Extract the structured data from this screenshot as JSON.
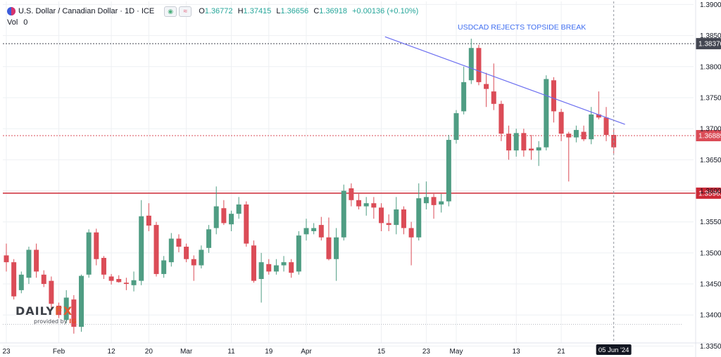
{
  "header": {
    "symbol": "U.S. Dollar / Canadian Dollar · 1D · ICE",
    "eye_icon": "eye-icon",
    "wave_icon": "approx-icon",
    "open_label": "O",
    "open": "1.36772",
    "high_label": "H",
    "high": "1.37415",
    "low_label": "L",
    "low": "1.36656",
    "close_label": "C",
    "close": "1.36918",
    "change": "+0.00136 (+0.10%)",
    "vol_label": "Vol",
    "vol_value": "0"
  },
  "logo": {
    "daily": "DAILY",
    "fx": "FX",
    "provided_by": "provided by",
    "ig": "IG"
  },
  "colors": {
    "up": "#4f9d83",
    "down": "#db4c57",
    "trend": "#6a6df0",
    "support": "#cc2936",
    "annotation": "#3e6df0",
    "last_price": "#db4c57"
  },
  "chart_data": {
    "type": "candlestick",
    "title": "USDCAD REJECTS TOPSIDE BREAK",
    "ylim": [
      1.3355,
      1.3905
    ],
    "y_ticks": [
      "1.39000",
      "1.38500",
      "1.38000",
      "1.37500",
      "1.37000",
      "1.36500",
      "1.36000",
      "1.35500",
      "1.35000",
      "1.34500",
      "1.34000",
      "1.33500"
    ],
    "x_ticks": [
      {
        "label": "23",
        "i": 0
      },
      {
        "label": "Feb",
        "i": 7
      },
      {
        "label": "12",
        "i": 14
      },
      {
        "label": "20",
        "i": 19
      },
      {
        "label": "Mar",
        "i": 24
      },
      {
        "label": "11",
        "i": 30
      },
      {
        "label": "19",
        "i": 35
      },
      {
        "label": "Apr",
        "i": 40
      },
      {
        "label": "15",
        "i": 50
      },
      {
        "label": "23",
        "i": 56
      },
      {
        "label": "May",
        "i": 60
      },
      {
        "label": "13",
        "i": 68
      },
      {
        "label": "21",
        "i": 74
      }
    ],
    "crosshair_date": "05 Jun '24",
    "levels": [
      {
        "label": "1.38370",
        "value": 1.3837,
        "style": "dotted",
        "color": "#434651"
      },
      {
        "label": "1.36889",
        "value": 1.36889,
        "style": "dotted",
        "color": "#db4c57"
      },
      {
        "label": "1.35962",
        "value": 1.35962,
        "style": "solid",
        "color": "#cc2936"
      }
    ],
    "trendline": {
      "from": {
        "i": 50.5,
        "value": 1.3848
      },
      "to": {
        "i": 82.5,
        "value": 1.3707
      }
    },
    "candles": [
      [
        1.3496,
        1.3485,
        1.3515,
        1.347
      ],
      [
        1.3485,
        1.343,
        1.349,
        1.3425
      ],
      [
        1.344,
        1.3465,
        1.347,
        1.3435
      ],
      [
        1.346,
        1.3505,
        1.351,
        1.345
      ],
      [
        1.3505,
        1.347,
        1.3515,
        1.346
      ],
      [
        1.3465,
        1.345,
        1.3472,
        1.3445
      ],
      [
        1.3455,
        1.3418,
        1.3462,
        1.3408
      ],
      [
        1.3415,
        1.34,
        1.342,
        1.3395
      ],
      [
        1.3392,
        1.3428,
        1.344,
        1.3387
      ],
      [
        1.3425,
        1.3381,
        1.3432,
        1.337
      ],
      [
        1.3381,
        1.3463,
        1.3465,
        1.3373
      ],
      [
        1.3465,
        1.3533,
        1.3538,
        1.346
      ],
      [
        1.3533,
        1.349,
        1.3539,
        1.348
      ],
      [
        1.3492,
        1.3465,
        1.3495,
        1.3458
      ],
      [
        1.3462,
        1.3455,
        1.3466,
        1.3449
      ],
      [
        1.3458,
        1.3453,
        1.3464,
        1.3452
      ],
      [
        1.3452,
        1.345,
        1.346,
        1.344
      ],
      [
        1.3448,
        1.3456,
        1.347,
        1.3438
      ],
      [
        1.3455,
        1.3559,
        1.3585,
        1.3448
      ],
      [
        1.356,
        1.3544,
        1.358,
        1.3535
      ],
      [
        1.3545,
        1.3466,
        1.355,
        1.3462
      ],
      [
        1.3466,
        1.3488,
        1.3495,
        1.346
      ],
      [
        1.3485,
        1.3523,
        1.3532,
        1.3478
      ],
      [
        1.3523,
        1.351,
        1.353,
        1.3501
      ],
      [
        1.351,
        1.349,
        1.3515,
        1.3485
      ],
      [
        1.349,
        1.348,
        1.3496,
        1.3455
      ],
      [
        1.348,
        1.3505,
        1.3512,
        1.3475
      ],
      [
        1.3508,
        1.3538,
        1.3545,
        1.35
      ],
      [
        1.354,
        1.3575,
        1.3607,
        1.353
      ],
      [
        1.3572,
        1.3548,
        1.3585,
        1.3545
      ],
      [
        1.3546,
        1.3563,
        1.3568,
        1.3535
      ],
      [
        1.3563,
        1.3578,
        1.359,
        1.3555
      ],
      [
        1.3578,
        1.3515,
        1.3583,
        1.351
      ],
      [
        1.3512,
        1.3455,
        1.352,
        1.3452
      ],
      [
        1.3458,
        1.3485,
        1.35,
        1.342
      ],
      [
        1.3482,
        1.347,
        1.349,
        1.3465
      ],
      [
        1.347,
        1.348,
        1.349,
        1.3465
      ],
      [
        1.348,
        1.3485,
        1.3495,
        1.347
      ],
      [
        1.3485,
        1.3468,
        1.349,
        1.346
      ],
      [
        1.347,
        1.3528,
        1.3535,
        1.3465
      ],
      [
        1.353,
        1.354,
        1.3555,
        1.352
      ],
      [
        1.3535,
        1.354,
        1.3548,
        1.353
      ],
      [
        1.3545,
        1.3525,
        1.3558,
        1.352
      ],
      [
        1.3525,
        1.349,
        1.3557,
        1.3488
      ],
      [
        1.349,
        1.3525,
        1.354,
        1.3455
      ],
      [
        1.3525,
        1.36,
        1.361,
        1.352
      ],
      [
        1.3604,
        1.3585,
        1.3612,
        1.3575
      ],
      [
        1.3585,
        1.3575,
        1.3595,
        1.357
      ],
      [
        1.3575,
        1.358,
        1.359,
        1.356
      ],
      [
        1.358,
        1.3573,
        1.359,
        1.3555
      ],
      [
        1.3573,
        1.3548,
        1.358,
        1.3535
      ],
      [
        1.3548,
        1.3545,
        1.3562,
        1.3535
      ],
      [
        1.3545,
        1.357,
        1.359,
        1.353
      ],
      [
        1.357,
        1.354,
        1.3575,
        1.353
      ],
      [
        1.354,
        1.3525,
        1.355,
        1.348
      ],
      [
        1.3525,
        1.3588,
        1.3612,
        1.352
      ],
      [
        1.358,
        1.359,
        1.3615,
        1.357
      ],
      [
        1.359,
        1.3577,
        1.3595,
        1.3555
      ],
      [
        1.3578,
        1.3583,
        1.3595,
        1.3565
      ],
      [
        1.3583,
        1.3682,
        1.369,
        1.3575
      ],
      [
        1.3682,
        1.3725,
        1.373,
        1.3676
      ],
      [
        1.3728,
        1.3775,
        1.38,
        1.3723
      ],
      [
        1.3778,
        1.383,
        1.3845,
        1.3772
      ],
      [
        1.383,
        1.3775,
        1.3835,
        1.377
      ],
      [
        1.3772,
        1.3764,
        1.379,
        1.3735
      ],
      [
        1.376,
        1.374,
        1.3805,
        1.373
      ],
      [
        1.374,
        1.3692,
        1.3745,
        1.368
      ],
      [
        1.3692,
        1.3665,
        1.3705,
        1.365
      ],
      [
        1.3665,
        1.3693,
        1.37,
        1.3655
      ],
      [
        1.3693,
        1.3665,
        1.37,
        1.3655
      ],
      [
        1.3668,
        1.3665,
        1.369,
        1.365
      ],
      [
        1.3665,
        1.367,
        1.368,
        1.364
      ],
      [
        1.367,
        1.378,
        1.3786,
        1.3665
      ],
      [
        1.3778,
        1.3728,
        1.3783,
        1.371
      ],
      [
        1.3727,
        1.3692,
        1.3732,
        1.368
      ],
      [
        1.3692,
        1.3686,
        1.3695,
        1.3615
      ],
      [
        1.3686,
        1.3698,
        1.3705,
        1.3678
      ],
      [
        1.3695,
        1.3683,
        1.3705,
        1.368
      ],
      [
        1.3683,
        1.3723,
        1.3735,
        1.3675
      ],
      [
        1.3723,
        1.3718,
        1.376,
        1.3715
      ],
      [
        1.3718,
        1.369,
        1.3735,
        1.368
      ],
      [
        1.369,
        1.367,
        1.37,
        1.366
      ]
    ]
  }
}
